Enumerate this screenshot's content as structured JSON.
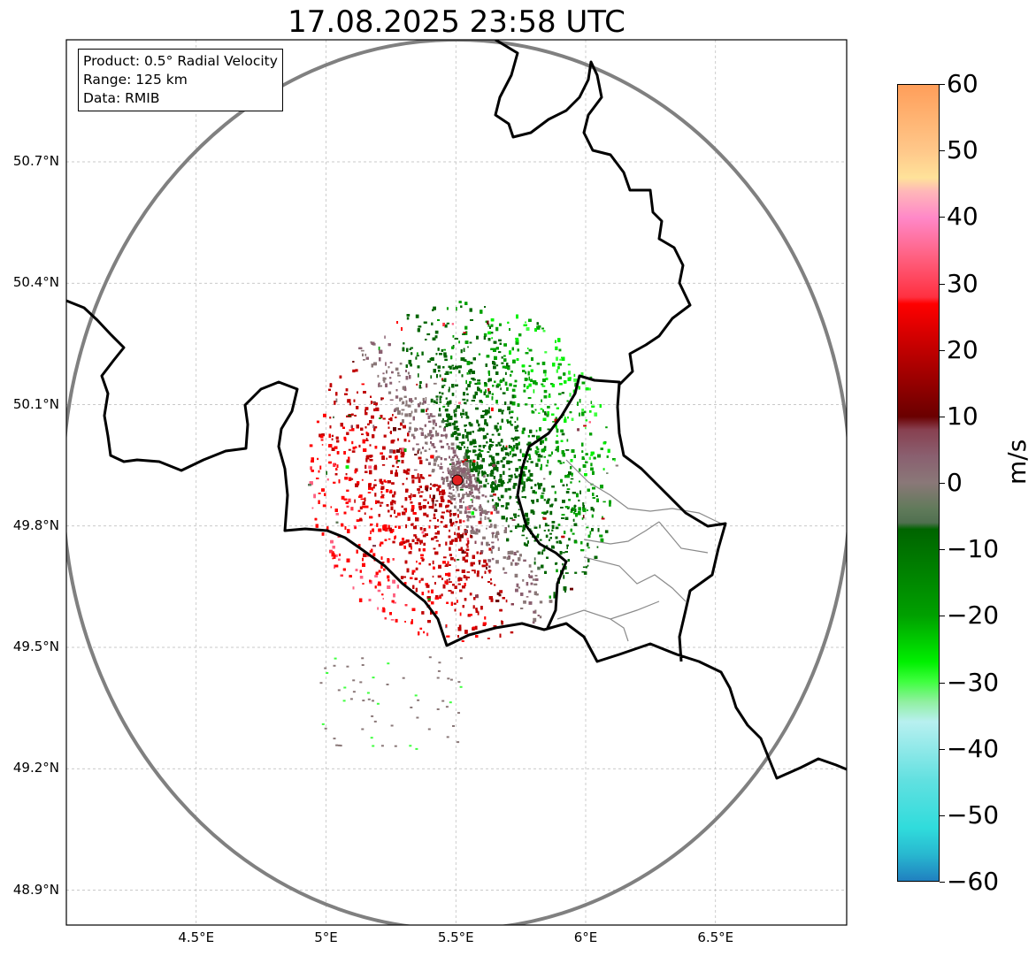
{
  "title": "17.08.2025 23:58 UTC",
  "info": {
    "product": "Product: 0.5° Radial Velocity",
    "range": "Range: 125 km",
    "source": "Data: RMIB"
  },
  "map": {
    "lon_range": [
      4.0,
      7.0
    ],
    "lat_range": [
      48.8,
      51.0
    ],
    "radar_site": {
      "lon": 5.505,
      "lat": 49.914
    },
    "lat_ticks": [
      {
        "value": 50.7,
        "label": "50.7°N"
      },
      {
        "value": 50.4,
        "label": "50.4°N"
      },
      {
        "value": 50.1,
        "label": "50.1°N"
      },
      {
        "value": 49.8,
        "label": "49.8°N"
      },
      {
        "value": 49.5,
        "label": "49.5°N"
      },
      {
        "value": 49.2,
        "label": "49.2°N"
      },
      {
        "value": 48.9,
        "label": "48.9°N"
      }
    ],
    "lon_ticks": [
      {
        "value": 4.5,
        "label": "4.5°E"
      },
      {
        "value": 5.0,
        "label": "5°E"
      },
      {
        "value": 5.5,
        "label": "5.5°E"
      },
      {
        "value": 6.0,
        "label": "6°E"
      },
      {
        "value": 6.5,
        "label": "6.5°E"
      }
    ],
    "colors": {
      "range_ring": "#808080",
      "border": "#000000",
      "province": "#8a8a8a",
      "grid": "#b8b8b8",
      "site": "#e02020"
    }
  },
  "colorbar": {
    "unit": "m/s",
    "min": -60,
    "max": 60,
    "ticks": [
      {
        "value": 60,
        "label": "60"
      },
      {
        "value": 50,
        "label": "50"
      },
      {
        "value": 40,
        "label": "40"
      },
      {
        "value": 30,
        "label": "30"
      },
      {
        "value": 20,
        "label": "20"
      },
      {
        "value": 10,
        "label": "10"
      },
      {
        "value": 0,
        "label": "0"
      },
      {
        "value": -10,
        "label": "−10"
      },
      {
        "value": -20,
        "label": "−20"
      },
      {
        "value": -30,
        "label": "−30"
      },
      {
        "value": -40,
        "label": "−40"
      },
      {
        "value": -50,
        "label": "−50"
      },
      {
        "value": -60,
        "label": "−60"
      }
    ],
    "stops": [
      {
        "v": 60,
        "c": "#ff9e5a"
      },
      {
        "v": 50,
        "c": "#ffc88a"
      },
      {
        "v": 46,
        "c": "#ffe29a"
      },
      {
        "v": 44,
        "c": "#ffb8b8"
      },
      {
        "v": 40,
        "c": "#ff88c8"
      },
      {
        "v": 34,
        "c": "#ff6080"
      },
      {
        "v": 28,
        "c": "#ff3040"
      },
      {
        "v": 27,
        "c": "#ff0000"
      },
      {
        "v": 20,
        "c": "#c00000"
      },
      {
        "v": 10,
        "c": "#6a0000"
      },
      {
        "v": 8,
        "c": "#884050"
      },
      {
        "v": 4,
        "c": "#8a6070"
      },
      {
        "v": 0,
        "c": "#8a7878"
      },
      {
        "v": -4,
        "c": "#607a5a"
      },
      {
        "v": -6,
        "c": "#507050"
      },
      {
        "v": -7,
        "c": "#006400"
      },
      {
        "v": -20,
        "c": "#00a000"
      },
      {
        "v": -27,
        "c": "#00f000"
      },
      {
        "v": -30,
        "c": "#40ff40"
      },
      {
        "v": -33,
        "c": "#90f0a0"
      },
      {
        "v": -36,
        "c": "#b8f0f0"
      },
      {
        "v": -45,
        "c": "#60e0e0"
      },
      {
        "v": -52,
        "c": "#30dcdc"
      },
      {
        "v": -56,
        "c": "#28b8d0"
      },
      {
        "v": -60,
        "c": "#2080c0"
      }
    ]
  }
}
